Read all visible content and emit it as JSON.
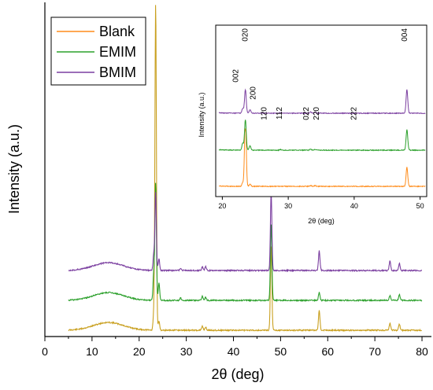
{
  "chart_data": [
    {
      "type": "line",
      "xlabel": "2θ (deg)",
      "ylabel": "Intensity (a.u.)",
      "xlim": [
        0,
        82
      ],
      "xticks": [
        0,
        10,
        20,
        30,
        40,
        50,
        60,
        70,
        80
      ],
      "legend": {
        "position": "top-left",
        "entries": [
          "Blank",
          "EMIM",
          "BMIM"
        ]
      },
      "colors": {
        "Blank": "#ff8c1a",
        "EMIM": "#2ca02c",
        "BMIM": "#7b3fa0",
        "Blank_overlap": "#c9a020"
      },
      "grid": false,
      "x_range": [
        5,
        80
      ],
      "series": [
        {
          "name": "Blank",
          "offset": 0,
          "peaks": [
            [
              23.1,
              20
            ],
            [
              23.5,
              420
            ],
            [
              24.2,
              12
            ],
            [
              33.4,
              5
            ],
            [
              34.1,
              4
            ],
            [
              48.0,
              110
            ],
            [
              58.2,
              25
            ],
            [
              73.2,
              9
            ],
            [
              75.2,
              8
            ]
          ]
        },
        {
          "name": "EMIM",
          "offset": 1,
          "peaks": [
            [
              23.1,
              35
            ],
            [
              23.5,
              150
            ],
            [
              24.2,
              22
            ],
            [
              28.8,
              3
            ],
            [
              33.4,
              5
            ],
            [
              34.1,
              4
            ],
            [
              48.0,
              100
            ],
            [
              58.2,
              10
            ],
            [
              73.2,
              6
            ],
            [
              75.2,
              8
            ]
          ]
        },
        {
          "name": "BMIM",
          "offset": 2,
          "peaks": [
            [
              23.1,
              20
            ],
            [
              23.5,
              100
            ],
            [
              24.2,
              15
            ],
            [
              28.8,
              3
            ],
            [
              33.4,
              5
            ],
            [
              34.1,
              5
            ],
            [
              48.0,
              100
            ],
            [
              58.2,
              25
            ],
            [
              73.2,
              12
            ],
            [
              75.2,
              9
            ]
          ]
        }
      ]
    },
    {
      "type": "line",
      "inset": true,
      "xlabel": "2θ (deg)",
      "ylabel": "Intensity (a.u.)",
      "xlim": [
        19,
        51
      ],
      "xticks": [
        20,
        30,
        40,
        50
      ],
      "peak_labels": [
        {
          "text": "002",
          "x": 23.1
        },
        {
          "text": "020",
          "x": 23.5
        },
        {
          "text": "200",
          "x": 24.2
        },
        {
          "text": "120",
          "x": 26.7
        },
        {
          "text": "112",
          "x": 29.0
        },
        {
          "text": "022",
          "x": 33.3
        },
        {
          "text": "220",
          "x": 34.3
        },
        {
          "text": "222",
          "x": 40.3
        },
        {
          "text": "004",
          "x": 48.0
        }
      ]
    }
  ]
}
